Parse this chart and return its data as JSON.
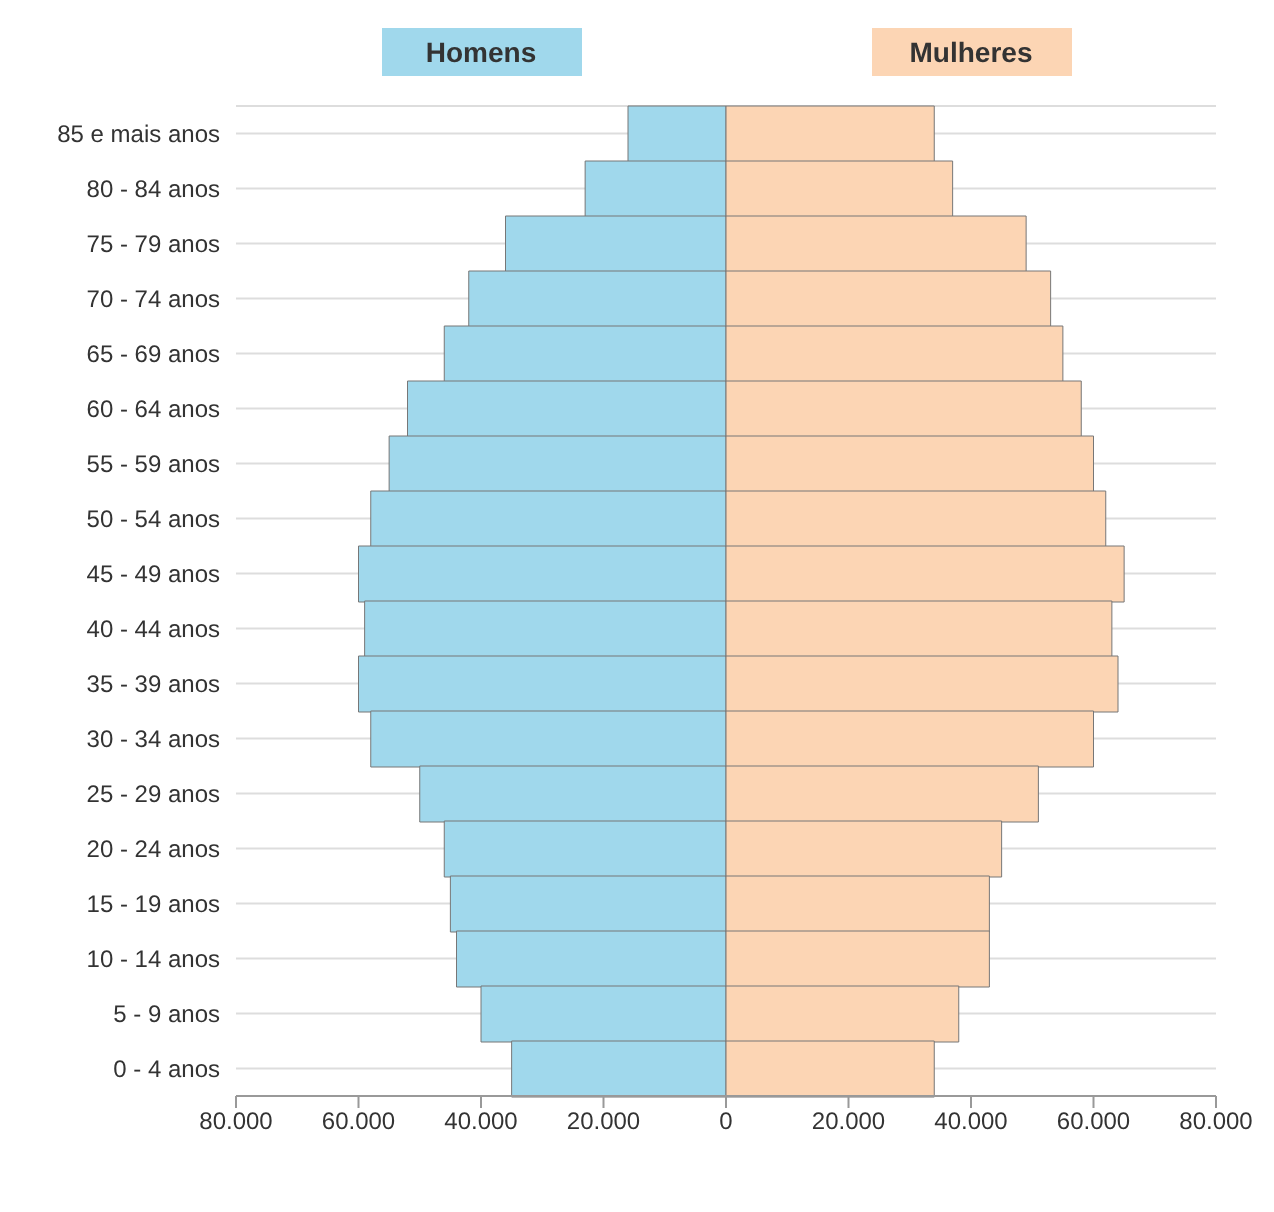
{
  "chart_data": {
    "type": "bar",
    "orientation": "horizontal",
    "stacked": true,
    "categories": [
      "85 e mais anos",
      "80 - 84 anos",
      "75 - 79 anos",
      "70 - 74 anos",
      "65 - 69 anos",
      "60 - 64 anos",
      "55 - 59 anos",
      "50 - 54 anos",
      "45 - 49 anos",
      "40 - 44 anos",
      "35 - 39 anos",
      "30 - 34 anos",
      "25 - 29 anos",
      "20 - 24 anos",
      "15 - 19 anos",
      "10 - 14 anos",
      "5 - 9 anos",
      "0 - 4 anos"
    ],
    "series": [
      {
        "name": "Homens",
        "color": "#a0d8ec",
        "values": [
          -16000,
          -23000,
          -36000,
          -42000,
          -46000,
          -52000,
          -55000,
          -58000,
          -60000,
          -59000,
          -60000,
          -58000,
          -50000,
          -46000,
          -45000,
          -44000,
          -40000,
          -35000
        ]
      },
      {
        "name": "Mulheres",
        "color": "#fcd5b4",
        "values": [
          34000,
          37000,
          49000,
          53000,
          55000,
          58000,
          60000,
          62000,
          65000,
          63000,
          64000,
          60000,
          51000,
          45000,
          43000,
          43000,
          38000,
          34000
        ]
      }
    ],
    "xlim": [
      -80000,
      80000
    ],
    "xticks": [
      {
        "value": -80000,
        "label": "80.000"
      },
      {
        "value": -60000,
        "label": "60.000"
      },
      {
        "value": -40000,
        "label": "40.000"
      },
      {
        "value": -20000,
        "label": "20.000"
      },
      0,
      {
        "value": 20000,
        "label": "20.000"
      },
      {
        "value": 40000,
        "label": "40.000"
      },
      {
        "value": 60000,
        "label": "60.000"
      },
      {
        "value": 80000,
        "label": "80.000"
      }
    ],
    "grid": "y",
    "legend": "top"
  }
}
